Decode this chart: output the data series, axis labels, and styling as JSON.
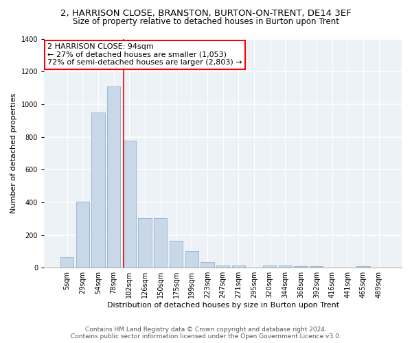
{
  "title1": "2, HARRISON CLOSE, BRANSTON, BURTON-ON-TRENT, DE14 3EF",
  "title2": "Size of property relative to detached houses in Burton upon Trent",
  "xlabel": "Distribution of detached houses by size in Burton upon Trent",
  "ylabel": "Number of detached properties",
  "footer1": "Contains HM Land Registry data © Crown copyright and database right 2024.",
  "footer2": "Contains public sector information licensed under the Open Government Licence v3.0.",
  "categories": [
    "5sqm",
    "29sqm",
    "54sqm",
    "78sqm",
    "102sqm",
    "126sqm",
    "150sqm",
    "175sqm",
    "199sqm",
    "223sqm",
    "247sqm",
    "271sqm",
    "295sqm",
    "320sqm",
    "344sqm",
    "368sqm",
    "392sqm",
    "416sqm",
    "441sqm",
    "465sqm",
    "489sqm"
  ],
  "values": [
    65,
    405,
    950,
    1110,
    775,
    305,
    305,
    165,
    100,
    35,
    15,
    15,
    0,
    15,
    15,
    10,
    10,
    0,
    0,
    10,
    0
  ],
  "bar_color": "#c8d8e8",
  "bar_edge_color": "#a0b8cc",
  "red_line_color": "red",
  "annotation_line1": "2 HARRISON CLOSE: 94sqm",
  "annotation_line2": "← 27% of detached houses are smaller (1,053)",
  "annotation_line3": "72% of semi-detached houses are larger (2,803) →",
  "annotation_box_color": "white",
  "annotation_box_edge_color": "red",
  "ylim": [
    0,
    1400
  ],
  "yticks": [
    0,
    200,
    400,
    600,
    800,
    1000,
    1200,
    1400
  ],
  "bg_color": "#edf2f7",
  "grid_color": "white",
  "title1_fontsize": 9.5,
  "title2_fontsize": 8.5,
  "xlabel_fontsize": 8,
  "ylabel_fontsize": 8,
  "tick_fontsize": 7,
  "footer_fontsize": 6.5,
  "annotation_fontsize": 8
}
